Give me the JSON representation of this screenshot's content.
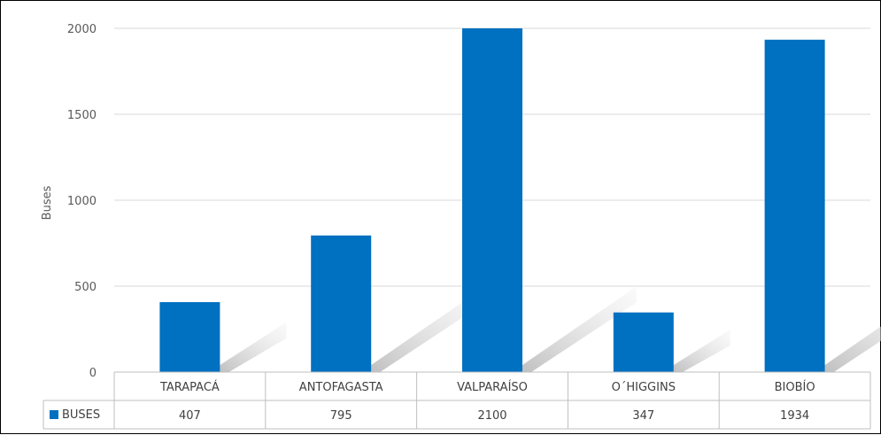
{
  "chart_data": {
    "type": "bar",
    "title": "",
    "xlabel": "",
    "ylabel": "Buses",
    "ylim": [
      0,
      2000
    ],
    "yticks": [
      0,
      500,
      1000,
      1500,
      2000
    ],
    "grid": true,
    "categories": [
      "TARAPACÁ",
      "ANTOFAGASTA",
      "VALPARAÍSO",
      "O´HIGGINS",
      "BIOBÍO"
    ],
    "series": [
      {
        "name": "BUSES",
        "values": [
          407,
          795,
          2100,
          347,
          1934
        ]
      }
    ],
    "table_values": [
      "407",
      "795",
      "2100",
      "347",
      "1934"
    ],
    "colors": {
      "bar": "#0070C0",
      "grid": "#D9D9D9",
      "table_line": "#BFBFBF",
      "shadow": "#C8C8C8"
    },
    "legend": "data-table"
  }
}
